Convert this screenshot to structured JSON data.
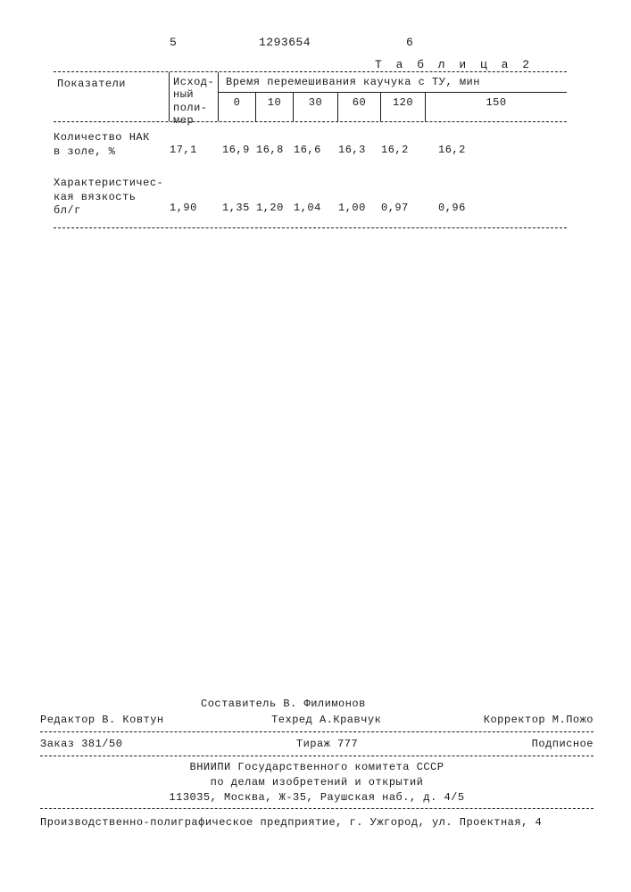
{
  "page_left": "5",
  "page_right": "6",
  "doc_number": "1293654",
  "table_caption": "Т а б л и ц а 2",
  "table": {
    "type": "table",
    "col_indicators_header": "Показатели",
    "col_initial_header": "Исход-\nный\nполи-\nмер",
    "times_header": "Время перемешивания каучука с ТУ, мин",
    "time_cols": [
      "0",
      "10",
      "30",
      "60",
      "120",
      "150"
    ],
    "rows": [
      {
        "label": "Количество НАК\nв золе, %",
        "initial": "17,1",
        "values": [
          "16,9",
          "16,8",
          "16,6",
          "16,3",
          "16,2",
          "16,2"
        ]
      },
      {
        "label": "Характеристичес-\nкая вязкость\nбл/г",
        "initial": "1,90",
        "values": [
          "1,35",
          "1,20",
          "1,04",
          "1,00",
          "0,97",
          "0,96"
        ]
      }
    ],
    "border_color": "#1a1a1a",
    "text_color": "#1a1a1a",
    "background_color": "#ffffff",
    "font_size": 12
  },
  "footer": {
    "compiler": "Составитель В. Филимонов",
    "editor": "Редактор В. Ковтун",
    "techred": "Техред А.Кравчук",
    "corrector": "Корректор М.Пожо",
    "order": "Заказ 381/50",
    "tirazh": "Тираж 777",
    "subscription": "Подписное",
    "org1": "ВНИИПИ Государственного комитета СССР",
    "org2": "по делам изобретений и открытий",
    "addr": "113035, Москва, Ж-35, Раушская наб., д. 4/5",
    "printer": "Производственно-полиграфическое предприятие, г. Ужгород, ул. Проектная, 4"
  }
}
